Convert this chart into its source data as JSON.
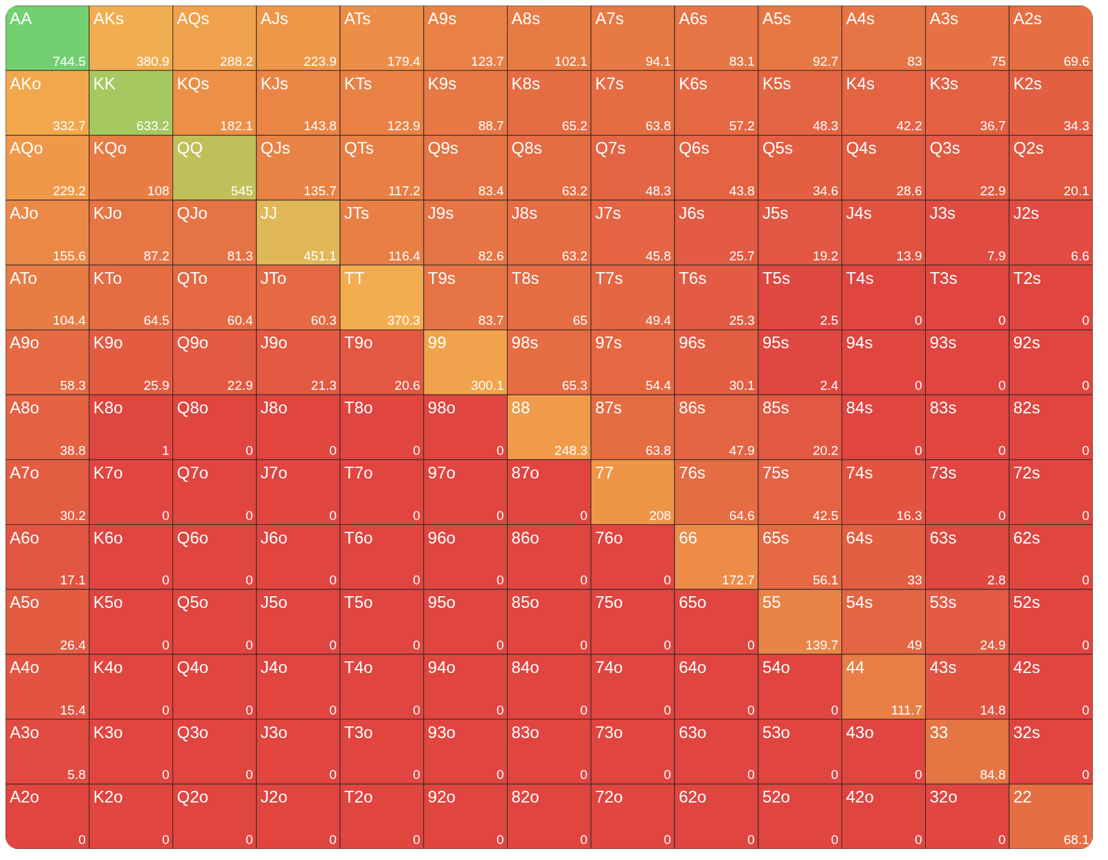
{
  "chart_data": {
    "type": "heatmap",
    "data_labels": true,
    "categories": [
      null,
      null,
      null,
      null,
      null,
      null,
      null,
      null,
      null,
      null,
      null,
      null,
      null
    ],
    "y_categories": [
      null,
      null,
      null,
      null,
      null,
      null,
      null,
      null,
      null,
      null,
      null,
      null,
      null
    ],
    "cells": [
      [
        744.5,
        380.9,
        288.2,
        223.9,
        179.4,
        123.7,
        102.1,
        94.1,
        83.1,
        92.7,
        83,
        75,
        69.6
      ],
      [
        332.7,
        633.2,
        182.1,
        143.8,
        123.9,
        88.7,
        65.2,
        63.8,
        57.2,
        48.3,
        42.2,
        36.7,
        34.3
      ],
      [
        229.2,
        108,
        545,
        135.7,
        117.2,
        83.4,
        63.2,
        48.3,
        43.8,
        34.6,
        28.6,
        22.9,
        20.1
      ],
      [
        155.6,
        87.2,
        81.3,
        451.1,
        116.4,
        82.6,
        63.2,
        45.8,
        25.7,
        19.2,
        13.9,
        7.9,
        6.6
      ],
      [
        104.4,
        64.5,
        60.4,
        60.3,
        370.3,
        83.7,
        65,
        49.4,
        25.3,
        2.5,
        0,
        0,
        0
      ],
      [
        58.3,
        25.9,
        22.9,
        21.3,
        20.6,
        300.1,
        65.3,
        54.4,
        30.1,
        2.4,
        0,
        0,
        0
      ],
      [
        38.8,
        1,
        0,
        0,
        0,
        0,
        248.3,
        63.8,
        47.9,
        20.2,
        0,
        0,
        0
      ],
      [
        30.2,
        0,
        0,
        0,
        0,
        0,
        0,
        208,
        64.6,
        42.5,
        16.3,
        0,
        0
      ],
      [
        17.1,
        0,
        0,
        0,
        0,
        0,
        0,
        0,
        172.7,
        56.1,
        33,
        2.8,
        0
      ],
      [
        26.4,
        0,
        0,
        0,
        0,
        0,
        0,
        0,
        0,
        139.7,
        49,
        24.9,
        0
      ],
      [
        15.4,
        0,
        0,
        0,
        0,
        0,
        0,
        0,
        0,
        0,
        111.7,
        14.8,
        0
      ],
      [
        5.8,
        0,
        0,
        0,
        0,
        0,
        0,
        0,
        0,
        0,
        0,
        84.8,
        0
      ],
      [
        0,
        0,
        0,
        0,
        0,
        0,
        0,
        0,
        0,
        0,
        0,
        0,
        68.1
      ]
    ],
    "annotations": [
      "AA",
      "AKs",
      "AQs",
      "AJs",
      "ATs",
      "A9s",
      "A8s",
      "A7s",
      "A6s",
      "A5s",
      "A4s",
      "A3s",
      "A2s",
      "AKo",
      "KK",
      "KQs",
      "KJs",
      "KTs",
      "K9s",
      "K8s",
      "K7s",
      "K6s",
      "K5s",
      "K4s",
      "K3s",
      "K2s",
      "AQo",
      "KQo",
      "QQ",
      "QJs",
      "QTs",
      "Q9s",
      "Q8s",
      "Q7s",
      "Q6s",
      "Q5s",
      "Q4s",
      "Q3s",
      "Q2s",
      "AJo",
      "KJo",
      "QJo",
      "JJ",
      "JTs",
      "J9s",
      "J8s",
      "J7s",
      "J6s",
      "J5s",
      "J4s",
      "J3s",
      "J2s",
      "ATo",
      "KTo",
      "QTo",
      "JTo",
      "TT",
      "T9s",
      "T8s",
      "T7s",
      "T6s",
      "T5s",
      "T4s",
      "T3s",
      "T2s",
      "A9o",
      "K9o",
      "Q9o",
      "J9o",
      "T9o",
      "99",
      "98s",
      "97s",
      "96s",
      "95s",
      "94s",
      "93s",
      "92s",
      "A8o",
      "K8o",
      "Q8o",
      "J8o",
      "T8o",
      "98o",
      "88",
      "87s",
      "86s",
      "85s",
      "84s",
      "83s",
      "82s",
      "A7o",
      "K7o",
      "Q7o",
      "J7o",
      "T7o",
      "97o",
      "87o",
      "77",
      "76s",
      "75s",
      "74s",
      "73s",
      "72s",
      "A6o",
      "K6o",
      "Q6o",
      "J6o",
      "T6o",
      "96o",
      "86o",
      "76o",
      "66",
      "65s",
      "64s",
      "63s",
      "62s",
      "A5o",
      "K5o",
      "Q5o",
      "J5o",
      "T5o",
      "95o",
      "85o",
      "75o",
      "65o",
      "55",
      "54s",
      "53s",
      "52s",
      "A4o",
      "K4o",
      "Q4o",
      "J4o",
      "T4o",
      "94o",
      "84o",
      "74o",
      "64o",
      "54o",
      "44",
      "43s",
      "42s",
      "A3o",
      "K3o",
      "Q3o",
      "J3o",
      "T3o",
      "93o",
      "83o",
      "73o",
      "63o",
      "53o",
      "43o",
      "33",
      "32s",
      "A2o",
      "K2o",
      "Q2o",
      "J2o",
      "T2o",
      "92o",
      "82o",
      "72o",
      "62o",
      "52o",
      "42o",
      "32o",
      "22"
    ]
  }
}
